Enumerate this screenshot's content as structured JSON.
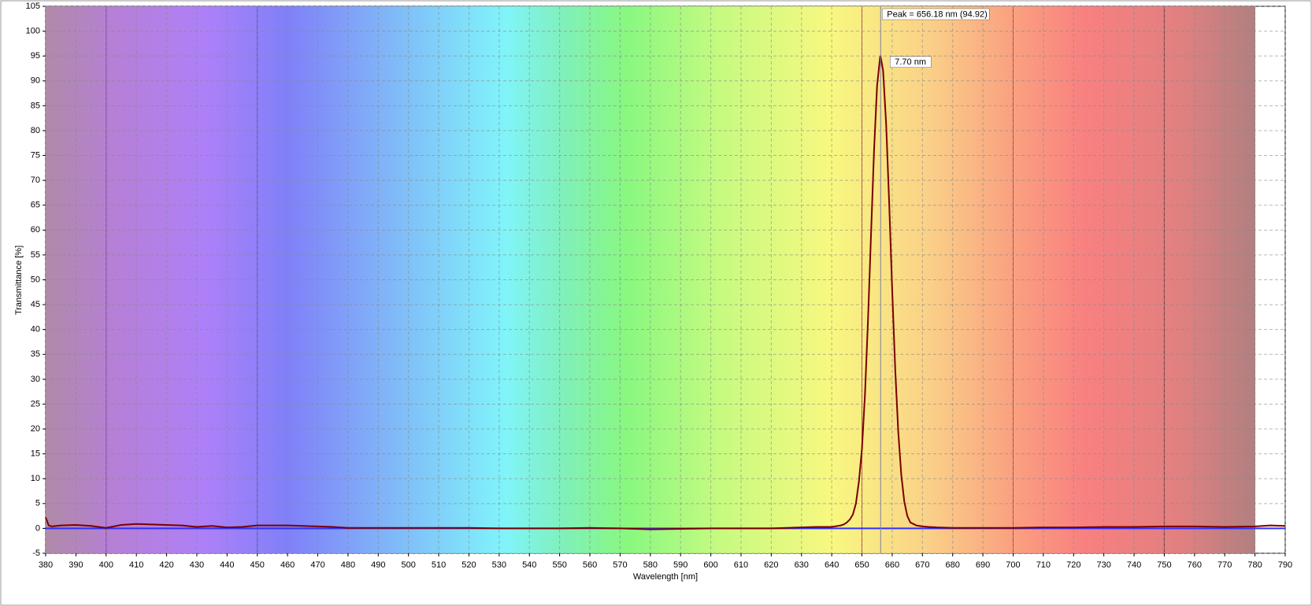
{
  "chart_data": {
    "type": "line",
    "xlabel": "Wavelength [nm]",
    "ylabel": "Transmittance [%]",
    "x": [
      380,
      381,
      382,
      385,
      390,
      395,
      400,
      405,
      410,
      415,
      420,
      425,
      430,
      435,
      440,
      445,
      450,
      455,
      460,
      465,
      470,
      475,
      480,
      490,
      500,
      510,
      520,
      530,
      540,
      550,
      560,
      570,
      580,
      590,
      600,
      610,
      620,
      630,
      635,
      640,
      641,
      642,
      643,
      644,
      645,
      646,
      647,
      648,
      649,
      650,
      651,
      652,
      653,
      654,
      655,
      656,
      656.18,
      657,
      658,
      659,
      660,
      661,
      662,
      663,
      664,
      665,
      666,
      668,
      670,
      672,
      675,
      680,
      690,
      700,
      710,
      720,
      730,
      740,
      750,
      760,
      770,
      780,
      785,
      790
    ],
    "series": [
      {
        "color": "#7a0000",
        "values": [
          2.2,
          0.6,
          0.4,
          0.6,
          0.7,
          0.5,
          0.1,
          0.7,
          0.9,
          0.8,
          0.7,
          0.6,
          0.3,
          0.5,
          0.2,
          0.3,
          0.6,
          0.6,
          0.6,
          0.5,
          0.4,
          0.3,
          0.1,
          0.1,
          0.1,
          0.1,
          0.1,
          0.0,
          0.0,
          0.0,
          0.1,
          0.0,
          -0.2,
          -0.1,
          0.0,
          0.0,
          0.0,
          0.2,
          0.3,
          0.3,
          0.4,
          0.5,
          0.6,
          0.8,
          1.2,
          1.8,
          2.8,
          5.0,
          9.5,
          16,
          27,
          41.9,
          59.1,
          76,
          89,
          94.8,
          94.92,
          92,
          81.3,
          65.5,
          47.9,
          32,
          19.5,
          10.8,
          5.4,
          2.5,
          1.2,
          0.6,
          0.4,
          0.3,
          0.2,
          0.1,
          0.1,
          0.1,
          0.2,
          0.2,
          0.3,
          0.3,
          0.4,
          0.4,
          0.3,
          0.4,
          0.6,
          0.5
        ]
      }
    ],
    "annotations": [
      "Peak = 656.18 nm (94.92)",
      "7.70 nm"
    ],
    "xlim": [
      380,
      790
    ],
    "ylim": [
      -5,
      105
    ],
    "xticks": [
      380,
      390,
      400,
      410,
      420,
      430,
      440,
      450,
      460,
      470,
      480,
      490,
      500,
      510,
      520,
      530,
      540,
      550,
      560,
      570,
      580,
      590,
      600,
      610,
      620,
      630,
      640,
      650,
      660,
      670,
      680,
      690,
      700,
      710,
      720,
      730,
      740,
      750,
      760,
      770,
      780,
      790
    ],
    "yticks": [
      -5,
      0,
      5,
      10,
      15,
      20,
      25,
      30,
      35,
      40,
      45,
      50,
      55,
      60,
      65,
      70,
      75,
      80,
      85,
      90,
      95,
      100,
      105
    ],
    "grid": true
  }
}
